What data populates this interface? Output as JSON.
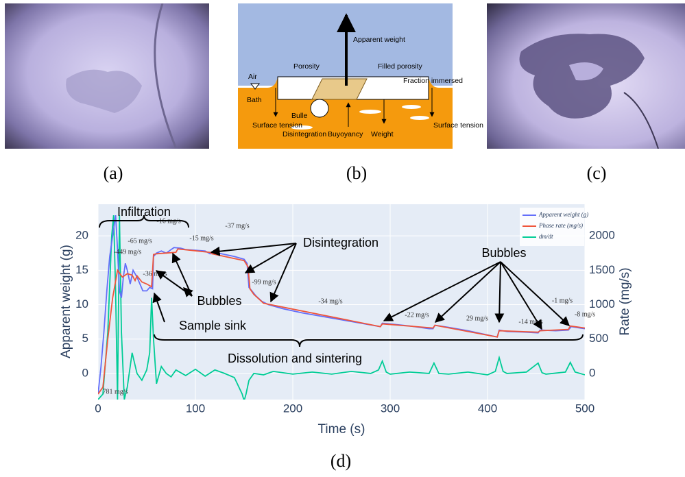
{
  "panel_labels": [
    "(a)",
    "(b)",
    "(c)",
    "(d)"
  ],
  "diagram": {
    "labels": [
      "Apparent weight",
      "Air",
      "Porosity",
      "Filled porosity",
      "Fraction immersed",
      "Bath",
      "Bulle",
      "Surface tension",
      "Disintegration",
      "Buyoyancy",
      "Weight",
      "Surface tension"
    ]
  },
  "chart_data": {
    "type": "line",
    "xlabel": "Time (s)",
    "ylabel": "Apparent weight (g)",
    "y2label": "Rate (mg/s)",
    "xlim": [
      0,
      500
    ],
    "xticks": [
      0,
      100,
      200,
      300,
      400,
      500
    ],
    "ylim": [
      -3.8,
      24.6
    ],
    "yticks": [
      0,
      5,
      10,
      15,
      20
    ],
    "y2lim": [
      -380,
      2460
    ],
    "y2ticks": [
      0,
      500,
      1000,
      1500,
      2000
    ],
    "grid": true,
    "legend": "top-right",
    "series": [
      {
        "name": "Apparent weight (g)",
        "color": "#636efa",
        "x": [
          0,
          3,
          6,
          9,
          12,
          15,
          18,
          20,
          22,
          24,
          26,
          28,
          30,
          33,
          36,
          40,
          43,
          46,
          50,
          53,
          56,
          57,
          60,
          65,
          70,
          75,
          78,
          85,
          90,
          100,
          110,
          115,
          120,
          130,
          140,
          150,
          153,
          155,
          158,
          162,
          168,
          175,
          190,
          210,
          230,
          250,
          270,
          290,
          292,
          300,
          320,
          340,
          344,
          346,
          360,
          380,
          400,
          410,
          412,
          420,
          440,
          452,
          454,
          470,
          483,
          486,
          495,
          500
        ],
        "values": [
          -3,
          1,
          6,
          12,
          17,
          20,
          23,
          18,
          12,
          11,
          14,
          16,
          15,
          13,
          15,
          14,
          13,
          12,
          12,
          12.5,
          12.3,
          17,
          17.5,
          17.8,
          17.5,
          18,
          18.3,
          18.2,
          18,
          17.9,
          17.8,
          17.4,
          17.6,
          17.3,
          17,
          16.6,
          16,
          12.5,
          12,
          11.3,
          10.5,
          10,
          9.4,
          8.8,
          8.3,
          7.8,
          7.3,
          6.8,
          7.3,
          7.2,
          6.9,
          6.5,
          6.5,
          7,
          6.7,
          6.2,
          5.6,
          5.3,
          6.3,
          6.1,
          6,
          5.9,
          6.3,
          6.2,
          6.3,
          6.8,
          6.6,
          6.5
        ]
      },
      {
        "name": "Phase rate (mg/s)",
        "color": "#ef553b",
        "x": [
          0,
          5,
          10,
          15,
          20,
          25,
          30,
          35,
          38,
          40,
          45,
          50,
          55,
          57,
          60,
          80,
          82,
          115,
          117,
          150,
          154,
          156,
          160,
          170,
          290,
          292,
          344,
          346,
          410,
          412,
          452,
          454,
          483,
          485,
          500
        ],
        "values": [
          -3,
          -2,
          5,
          11,
          15,
          14,
          14.5,
          14.3,
          13.5,
          14.2,
          13.3,
          13,
          12.6,
          17.3,
          17.4,
          17.6,
          18.1,
          17.6,
          17.4,
          16.4,
          15.5,
          12.3,
          11.5,
          10.2,
          6.8,
          7.2,
          6.6,
          7.0,
          5.3,
          6.2,
          6.0,
          6.2,
          6.4,
          6.9,
          6.6
        ]
      },
      {
        "name": "dm/dt",
        "color": "#00cc96",
        "axis": "y2",
        "x": [
          0,
          5,
          10,
          14,
          16,
          18,
          20,
          22,
          24,
          27,
          30,
          35,
          40,
          45,
          50,
          53,
          55,
          57,
          60,
          65,
          70,
          75,
          80,
          90,
          100,
          110,
          120,
          130,
          140,
          148,
          150,
          152,
          155,
          160,
          170,
          180,
          200,
          220,
          240,
          260,
          280,
          288,
          292,
          296,
          300,
          320,
          340,
          345,
          350,
          360,
          380,
          400,
          408,
          412,
          416,
          420,
          440,
          452,
          456,
          460,
          480,
          485,
          490,
          500
        ],
        "values": [
          -380,
          -300,
          600,
          2000,
          2300,
          1200,
          -380,
          2300,
          600,
          -380,
          -200,
          300,
          0,
          -100,
          50,
          300,
          1100,
          500,
          -150,
          100,
          0,
          -50,
          50,
          -30,
          60,
          -40,
          50,
          0,
          -60,
          -300,
          -400,
          -300,
          -100,
          0,
          -20,
          30,
          -10,
          20,
          -10,
          30,
          0,
          50,
          180,
          20,
          -10,
          20,
          0,
          150,
          0,
          -10,
          20,
          -20,
          30,
          230,
          30,
          0,
          20,
          150,
          10,
          -10,
          20,
          160,
          20,
          -20
        ]
      }
    ],
    "rate_labels": [
      "-449 mg/s",
      "-65 mg/s",
      "-36 mg/s",
      "-16 mg/s",
      "-15 mg/s",
      "-37 mg/s",
      "-99 mg/s",
      "-34 mg/s",
      "-22 mg/s",
      "29 mg/s",
      "-14 mg/s",
      "-1 mg/s",
      "-8 mg/s",
      "781 mg/s"
    ],
    "annotations": [
      "Infiltration",
      "Disintegration",
      "Bubbles",
      "Bubbles",
      "Sample sink",
      "Dissolution and sintering"
    ]
  }
}
